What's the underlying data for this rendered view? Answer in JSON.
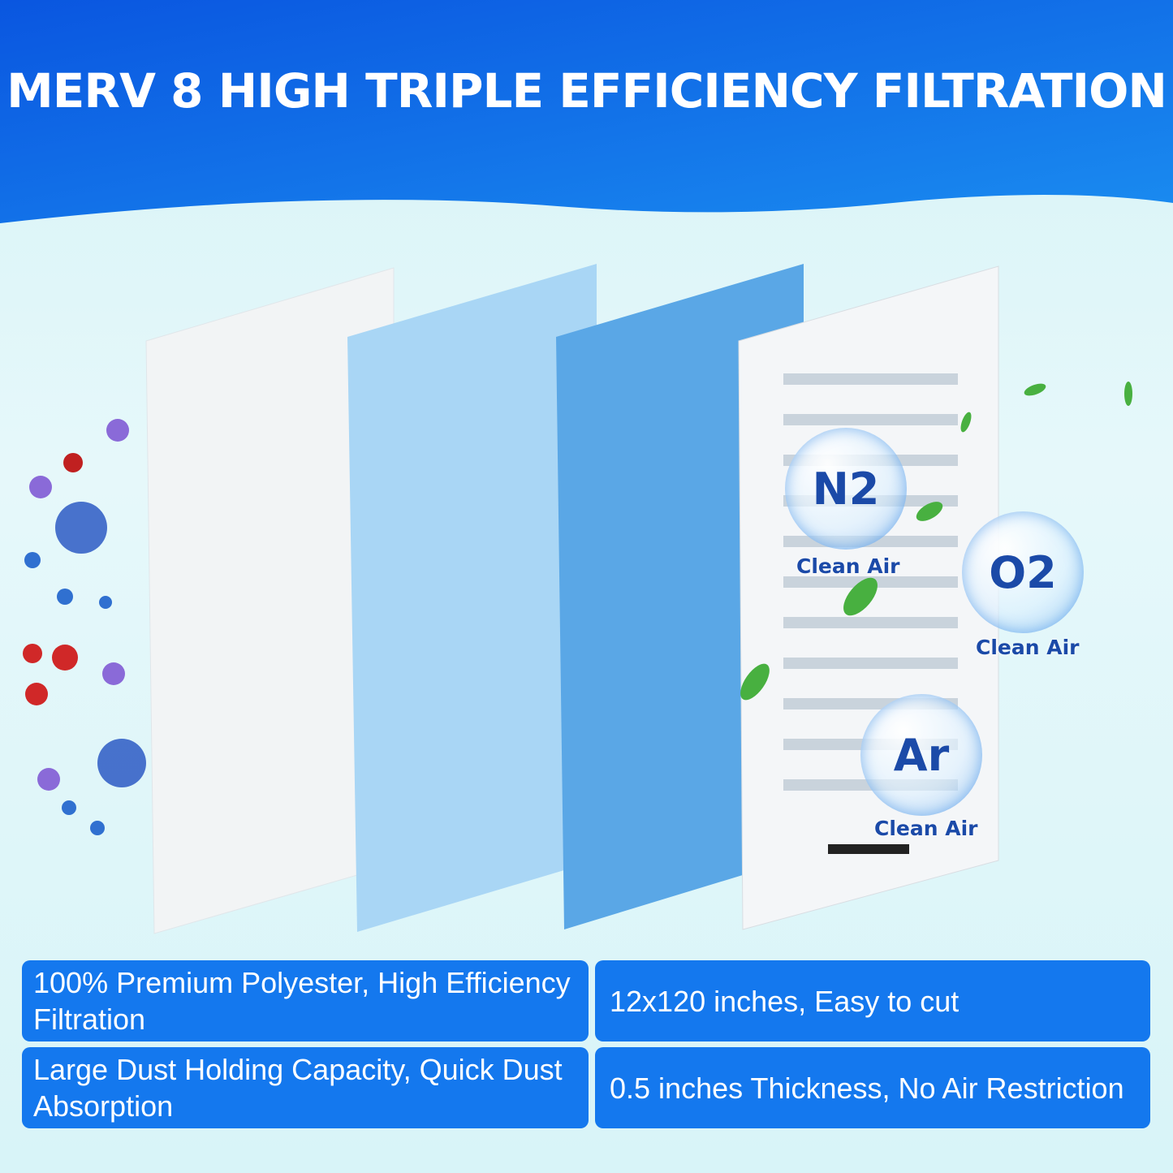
{
  "title": "MERV 8 HIGH TRIPLE EFFICIENCY FILTRATION",
  "bubbles": [
    {
      "symbol": "N2",
      "label": "Clean Air"
    },
    {
      "symbol": "O2",
      "label": "Clean Air"
    },
    {
      "symbol": "Ar",
      "label": "Clean Air"
    }
  ],
  "features": [
    "100% Premium Polyester, High Efficiency Filtration",
    "12x120 inches, Easy to cut",
    "Large Dust Holding Capacity, Quick Dust Absorption",
    "0.5 inches Thickness, No Air Restriction"
  ],
  "colors": {
    "header": "#0f64e8",
    "box": "#1478ee",
    "text": "#1b4aa8"
  }
}
